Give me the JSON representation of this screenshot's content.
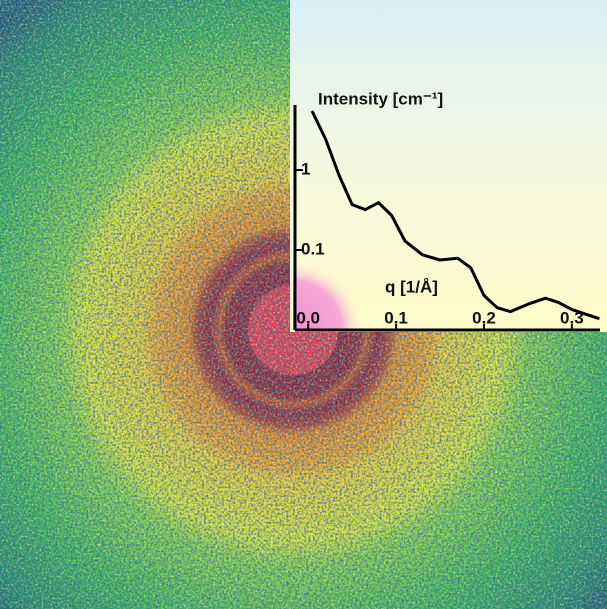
{
  "chart_data": {
    "type": "line",
    "y_label": "Intensity [cm⁻¹]",
    "x_label": "q [1/Å]",
    "x": [
      0.005,
      0.02,
      0.035,
      0.05,
      0.065,
      0.08,
      0.095,
      0.11,
      0.13,
      0.15,
      0.17,
      0.185,
      0.2,
      0.215,
      0.23,
      0.25,
      0.27,
      0.285,
      0.3,
      0.33
    ],
    "values": [
      5.3,
      2.4,
      0.87,
      0.37,
      0.32,
      0.39,
      0.27,
      0.13,
      0.087,
      0.075,
      0.079,
      0.06,
      0.027,
      0.019,
      0.017,
      0.021,
      0.025,
      0.022,
      0.018,
      0.014
    ],
    "color": "#000000",
    "xlim": [
      -0.015,
      0.332
    ],
    "xticks": [
      {
        "value": 0,
        "label": "0.0"
      },
      0.1,
      0.2,
      0.3
    ],
    "ylim": [
      0.01,
      6.5
    ],
    "yticks": [
      0.1,
      1
    ],
    "y_log": true
  }
}
